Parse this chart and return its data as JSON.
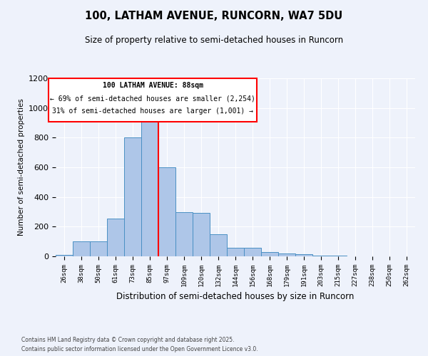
{
  "title_line1": "100, LATHAM AVENUE, RUNCORN, WA7 5DU",
  "title_line2": "Size of property relative to semi-detached houses in Runcorn",
  "xlabel": "Distribution of semi-detached houses by size in Runcorn",
  "ylabel": "Number of semi-detached properties",
  "bin_labels": [
    "26sqm",
    "38sqm",
    "50sqm",
    "61sqm",
    "73sqm",
    "85sqm",
    "97sqm",
    "109sqm",
    "120sqm",
    "132sqm",
    "144sqm",
    "156sqm",
    "168sqm",
    "179sqm",
    "191sqm",
    "203sqm",
    "215sqm",
    "227sqm",
    "238sqm",
    "250sqm",
    "262sqm"
  ],
  "bar_heights": [
    10,
    100,
    100,
    255,
    800,
    950,
    600,
    300,
    295,
    150,
    60,
    58,
    30,
    20,
    15,
    7,
    3,
    2,
    1,
    1,
    0
  ],
  "bar_color": "#aec6e8",
  "bar_edge_color": "#4a90c4",
  "red_line_x": 5.5,
  "annotation_title": "100 LATHAM AVENUE: 88sqm",
  "annotation_line1": "← 69% of semi-detached houses are smaller (2,254)",
  "annotation_line2": "31% of semi-detached houses are larger (1,001) →",
  "ylim": [
    0,
    1200
  ],
  "yticks": [
    0,
    200,
    400,
    600,
    800,
    1000,
    1200
  ],
  "footer_line1": "Contains HM Land Registry data © Crown copyright and database right 2025.",
  "footer_line2": "Contains public sector information licensed under the Open Government Licence v3.0.",
  "background_color": "#eef2fb"
}
